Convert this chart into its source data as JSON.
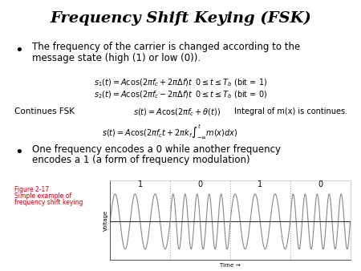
{
  "title": "Frequency Shift Keying (FSK)",
  "background_color": "#ffffff",
  "title_fontsize": 14,
  "bullet1_line1": "The frequency of the carrier is changed according to the",
  "bullet1_line2": "message state (high (1) or low (0)).",
  "eq1": "$s_1(t) = A\\cos(2\\pi f_c + 2\\pi\\Delta f)t \\;\\; 0 \\leq t \\leq T_b$ (bit = 1)",
  "eq2": "$s_2(t) = A\\cos(2\\pi f_c - 2\\pi\\Delta f)t \\;\\; 0 \\leq t \\leq T_b$ (bit = 0)",
  "continues_label": "Continues FSK",
  "eq3": "$s(t) = A\\cos(2\\pi f_c + \\theta(t))$",
  "integral_label": "Integral of m(x) is continues.",
  "eq4": "$s(t) = A\\cos(2\\pi f_c t + 2\\pi k_f \\int_{-\\infty}^{t} m(x)dx)$",
  "bullet2_line1": "One frequency encodes a 0 while another frequency",
  "bullet2_line2": "encodes a 1 (a form of frequency modulation)",
  "fig_label": "Figure 2-17",
  "fig_caption_line1": "Simple example of",
  "fig_caption_line2": "frequency shift keying",
  "fig_text_color": "#cc0000",
  "freq_low": 3,
  "freq_high": 5,
  "signal_color": "#888888",
  "divider_color": "#aaaaaa",
  "axis_color": "#333333",
  "box_color": "#cccccc"
}
